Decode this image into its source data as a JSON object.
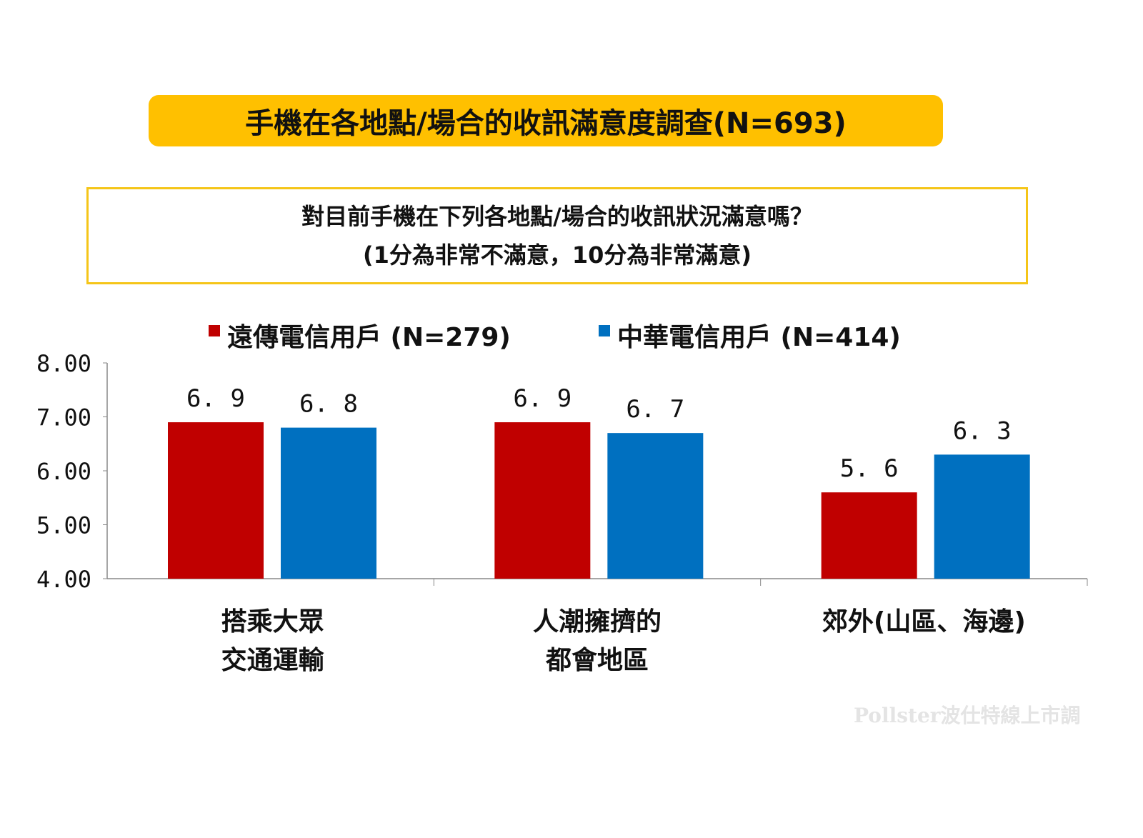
{
  "title": "手機在各地點/場合的收訊滿意度調查(N=693)",
  "question": {
    "line1": "對目前手機在下列各地點/場合的收訊狀況滿意嗎？",
    "line2": "(1分為非常不滿意，10分為非常滿意)"
  },
  "watermark": "Pollster波仕特線上市調",
  "chart_data": {
    "type": "bar",
    "categories": [
      [
        "搭乘大眾",
        "交通運輸"
      ],
      [
        "人潮擁擠的",
        "都會地區"
      ],
      [
        "郊外(山區、海邊)"
      ]
    ],
    "series": [
      {
        "name": "遠傳電信用戶 (N=279)",
        "color": "#c00000",
        "values": [
          6.9,
          6.9,
          5.6
        ],
        "labels": [
          "6. 9",
          "6. 9",
          "5. 6"
        ]
      },
      {
        "name": "中華電信用戶 (N=414)",
        "color": "#0070c0",
        "values": [
          6.8,
          6.7,
          6.3
        ],
        "labels": [
          "6. 8",
          "6. 7",
          "6. 3"
        ]
      }
    ],
    "ylim": [
      4,
      8
    ],
    "yticks": [
      "4.00",
      "5.00",
      "6.00",
      "7.00",
      "8.00"
    ],
    "legend_position": "top",
    "grid": false
  }
}
